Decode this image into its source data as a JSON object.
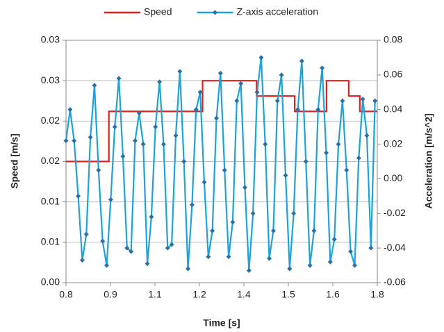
{
  "chart_data": {
    "type": "line",
    "xlabel": "Time [s]",
    "ylabel": "Speed [m/s]",
    "y2label": "Acceleration [m/s^2]",
    "xlim": [
      0.8,
      1.78
    ],
    "xticks": [
      0.8,
      {
        "value": 0.94,
        "label": "0.9"
      },
      {
        "value": 1.08,
        "label": "1.1"
      },
      {
        "value": 1.22,
        "label": "1.2"
      },
      {
        "value": 1.36,
        "label": "1.4"
      },
      {
        "value": 1.5,
        "label": "1.5"
      },
      {
        "value": 1.64,
        "label": "1.6"
      },
      {
        "value": 1.78,
        "label": "1.8"
      }
    ],
    "ylim": [
      0,
      0.03
    ],
    "yticks": [
      {
        "value": 0,
        "label": "0.00"
      },
      {
        "value": 0.005,
        "label": "0.01"
      },
      0.01,
      {
        "value": 0.015,
        "label": "0.02"
      },
      0.02,
      {
        "value": 0.025,
        "label": "0.03"
      },
      0.03
    ],
    "y2lim": [
      -0.06,
      0.08
    ],
    "y2ticks": [
      -0.06,
      -0.04,
      -0.02,
      {
        "value": 0,
        "label": "0.00"
      },
      0.02,
      0.04,
      0.06,
      0.08
    ],
    "grid": true,
    "legend": "top",
    "series": [
      {
        "name": "Speed",
        "color": "#e0201c",
        "marker": false,
        "x": [
          0.8,
          0.935,
          0.935,
          1.23,
          1.23,
          1.4,
          1.4,
          1.52,
          1.52,
          1.62,
          1.62,
          1.69,
          1.69,
          1.725,
          1.725,
          1.78
        ],
        "values": [
          0.015,
          0.015,
          0.0212,
          0.0212,
          0.025,
          0.025,
          0.0231,
          0.0231,
          0.0212,
          0.0212,
          0.025,
          0.025,
          0.0231,
          0.0231,
          0.0212,
          0.0212
        ]
      },
      {
        "name": "Z-axis acceleration",
        "color": "#1aa3dc",
        "marker": true,
        "marker_color": "#2a6fa8",
        "axis": "y2",
        "x": [
          0.8,
          0.8128,
          0.8256,
          0.8384,
          0.8512,
          0.864,
          0.8768,
          0.8896,
          0.9024,
          0.9152,
          0.928,
          0.9408,
          0.9536,
          0.9664,
          0.9792,
          0.992,
          1.0048,
          1.0176,
          1.0304,
          1.0432,
          1.056,
          1.0688,
          1.0816,
          1.0944,
          1.1072,
          1.12,
          1.1328,
          1.1456,
          1.1584,
          1.1712,
          1.184,
          1.1968,
          1.2096,
          1.2224,
          1.2352,
          1.248,
          1.2608,
          1.2736,
          1.2864,
          1.2992,
          1.312,
          1.3248,
          1.3376,
          1.3504,
          1.3632,
          1.376,
          1.3888,
          1.4016,
          1.4144,
          1.4272,
          1.44,
          1.4528,
          1.4656,
          1.4784,
          1.4912,
          1.504,
          1.5168,
          1.5296,
          1.5424,
          1.5552,
          1.568,
          1.5808,
          1.5936,
          1.6064,
          1.6192,
          1.632,
          1.6448,
          1.6576,
          1.6704,
          1.6832,
          1.696,
          1.7088,
          1.7216,
          1.7344,
          1.7472,
          1.76,
          1.7728
        ],
        "values": [
          0.022,
          0.04,
          0.022,
          -0.01,
          -0.047,
          -0.032,
          0.024,
          0.054,
          0.005,
          -0.036,
          -0.05,
          -0.012,
          0.03,
          0.058,
          0.013,
          -0.04,
          -0.042,
          0.022,
          0.038,
          0.02,
          -0.049,
          -0.022,
          0.03,
          0.056,
          0.02,
          -0.04,
          -0.038,
          0.025,
          0.062,
          0.01,
          -0.052,
          -0.015,
          0.04,
          0.05,
          -0.002,
          -0.045,
          -0.03,
          0.035,
          0.061,
          0.005,
          -0.045,
          -0.025,
          0.045,
          0.055,
          -0.005,
          -0.053,
          -0.02,
          0.05,
          0.07,
          0.02,
          -0.046,
          -0.03,
          0.045,
          0.06,
          0.002,
          -0.052,
          -0.02,
          0.04,
          0.068,
          0.01,
          -0.05,
          -0.03,
          0.04,
          0.064,
          0.015,
          -0.048,
          -0.035,
          0.02,
          0.045,
          0.005,
          -0.042,
          -0.05,
          0.012,
          0.046,
          0.025,
          -0.04,
          0.045
        ]
      }
    ]
  }
}
